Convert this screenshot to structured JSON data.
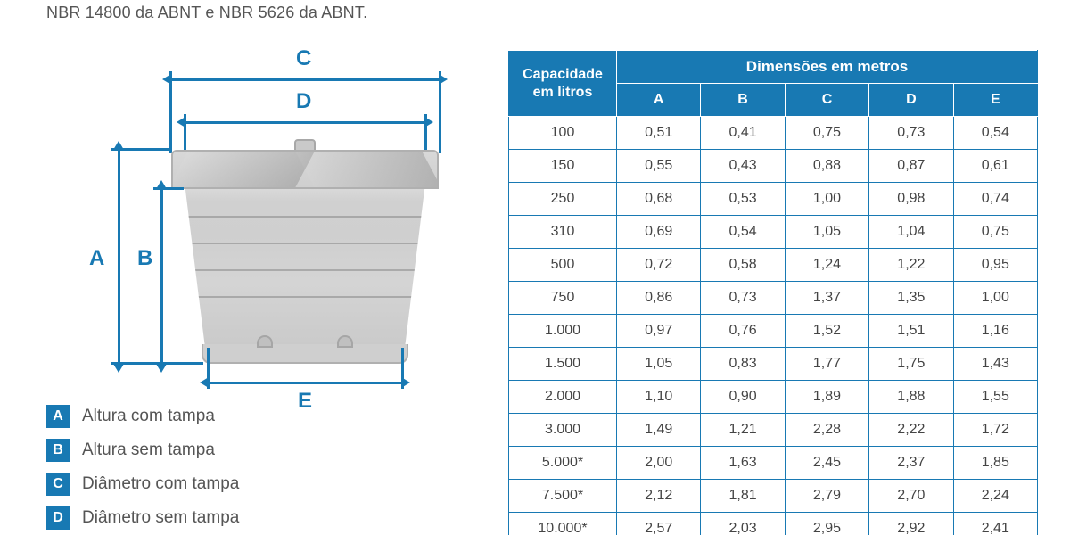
{
  "topText": "NBR 14800 da ABNT e NBR 5626 da ABNT.",
  "colors": {
    "brand": "#1879b3",
    "text": "#555555",
    "tableBorder": "#1879b3",
    "headerBg": "#1879b3",
    "headerText": "#ffffff"
  },
  "diagramLabels": {
    "A": "A",
    "B": "B",
    "C": "C",
    "D": "D",
    "E": "E"
  },
  "legend": [
    {
      "key": "A",
      "text": "Altura com tampa"
    },
    {
      "key": "B",
      "text": "Altura sem tampa"
    },
    {
      "key": "C",
      "text": "Diâmetro com tampa"
    },
    {
      "key": "D",
      "text": "Diâmetro sem tampa"
    }
  ],
  "table": {
    "capacityHeaderLine1": "Capacidade",
    "capacityHeaderLine2": "em litros",
    "dimensionsHeader": "Dimensões em metros",
    "columns": [
      "A",
      "B",
      "C",
      "D",
      "E"
    ],
    "rows": [
      {
        "cap": "100",
        "A": "0,51",
        "B": "0,41",
        "C": "0,75",
        "D": "0,73",
        "E": "0,54"
      },
      {
        "cap": "150",
        "A": "0,55",
        "B": "0,43",
        "C": "0,88",
        "D": "0,87",
        "E": "0,61"
      },
      {
        "cap": "250",
        "A": "0,68",
        "B": "0,53",
        "C": "1,00",
        "D": "0,98",
        "E": "0,74"
      },
      {
        "cap": "310",
        "A": "0,69",
        "B": "0,54",
        "C": "1,05",
        "D": "1,04",
        "E": "0,75"
      },
      {
        "cap": "500",
        "A": "0,72",
        "B": "0,58",
        "C": "1,24",
        "D": "1,22",
        "E": "0,95"
      },
      {
        "cap": "750",
        "A": "0,86",
        "B": "0,73",
        "C": "1,37",
        "D": "1,35",
        "E": "1,00"
      },
      {
        "cap": "1.000",
        "A": "0,97",
        "B": "0,76",
        "C": "1,52",
        "D": "1,51",
        "E": "1,16"
      },
      {
        "cap": "1.500",
        "A": "1,05",
        "B": "0,83",
        "C": "1,77",
        "D": "1,75",
        "E": "1,43"
      },
      {
        "cap": "2.000",
        "A": "1,10",
        "B": "0,90",
        "C": "1,89",
        "D": "1,88",
        "E": "1,55"
      },
      {
        "cap": "3.000",
        "A": "1,49",
        "B": "1,21",
        "C": "2,28",
        "D": "2,22",
        "E": "1,72"
      },
      {
        "cap": "5.000*",
        "A": "2,00",
        "B": "1,63",
        "C": "2,45",
        "D": "2,37",
        "E": "1,85"
      },
      {
        "cap": "7.500*",
        "A": "2,12",
        "B": "1,81",
        "C": "2,79",
        "D": "2,70",
        "E": "2,24"
      },
      {
        "cap": "10.000*",
        "A": "2,57",
        "B": "2,03",
        "C": "2,95",
        "D": "2,92",
        "E": "2,41"
      }
    ]
  }
}
